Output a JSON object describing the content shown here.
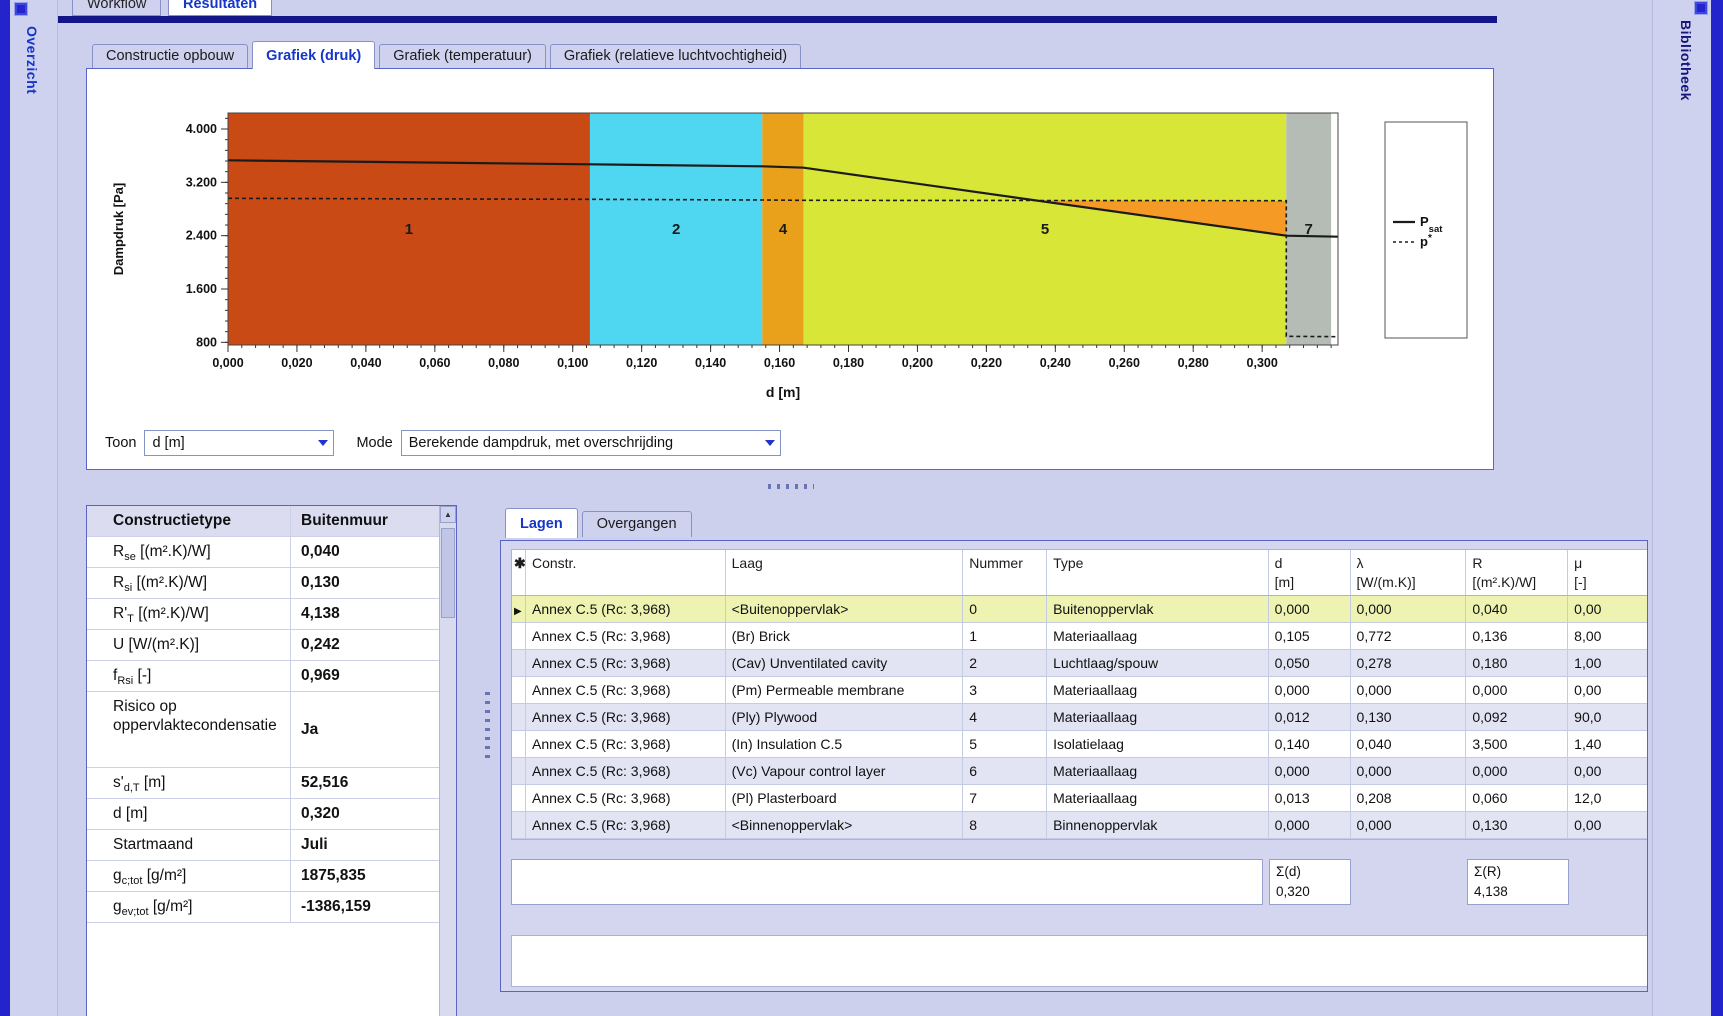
{
  "window": {
    "top_tabs": [
      {
        "label": "Workflow"
      },
      {
        "label": "Resultaten"
      }
    ],
    "left_rail_label": "Overzicht",
    "right_rail_label": "Bibliotheek"
  },
  "icons": {
    "scroll_up": "▲"
  },
  "page_tabs": [
    {
      "label": "Constructie opbouw"
    },
    {
      "label": "Grafiek (druk)"
    },
    {
      "label": "Grafiek (temperatuur)"
    },
    {
      "label": "Grafiek (relatieve luchtvochtigheid)"
    }
  ],
  "chart_data": {
    "type": "area",
    "ylabel": "Dampdruk [Pa]",
    "xlabel": "d [m]",
    "x_domain": [
      0,
      0.322
    ],
    "y_domain": [
      760,
      4240
    ],
    "x_minor_step": 0.004,
    "y_minor_step": 160,
    "yticks": [
      {
        "v": 800,
        "label": "800"
      },
      {
        "v": 1600,
        "label": "1.600"
      },
      {
        "v": 2400,
        "label": "2.400"
      },
      {
        "v": 3200,
        "label": "3.200"
      },
      {
        "v": 4000,
        "label": "4.000"
      }
    ],
    "xticks": [
      {
        "v": 0.0,
        "label": "0,000"
      },
      {
        "v": 0.02,
        "label": "0,020"
      },
      {
        "v": 0.04,
        "label": "0,040"
      },
      {
        "v": 0.06,
        "label": "0,060"
      },
      {
        "v": 0.08,
        "label": "0,080"
      },
      {
        "v": 0.1,
        "label": "0,100"
      },
      {
        "v": 0.12,
        "label": "0,120"
      },
      {
        "v": 0.14,
        "label": "0,140"
      },
      {
        "v": 0.16,
        "label": "0,160"
      },
      {
        "v": 0.18,
        "label": "0,180"
      },
      {
        "v": 0.2,
        "label": "0,200"
      },
      {
        "v": 0.22,
        "label": "0,220"
      },
      {
        "v": 0.24,
        "label": "0,240"
      },
      {
        "v": 0.26,
        "label": "0,260"
      },
      {
        "v": 0.28,
        "label": "0,280"
      },
      {
        "v": 0.3,
        "label": "0,300"
      }
    ],
    "layers": [
      {
        "num": "1",
        "x0": 0.0,
        "x1": 0.105,
        "color": "#c94a15"
      },
      {
        "num": "2",
        "x0": 0.105,
        "x1": 0.155,
        "color": "#4fd6f0"
      },
      {
        "num": "4",
        "x0": 0.155,
        "x1": 0.167,
        "color": "#e9a11b"
      },
      {
        "num": "5",
        "x0": 0.167,
        "x1": 0.307,
        "color": "#d8e637"
      },
      {
        "num": "7",
        "x0": 0.307,
        "x1": 0.32,
        "color": "#b5bcb5"
      }
    ],
    "overshoot": {
      "color": "#f59a25",
      "points": [
        [
          0.2345,
          2928
        ],
        [
          0.307,
          2925
        ],
        [
          0.307,
          2400
        ]
      ]
    },
    "series": [
      {
        "name": "Psat",
        "style": "solid",
        "points": [
          [
            0,
            3530
          ],
          [
            0.105,
            3470
          ],
          [
            0.155,
            3440
          ],
          [
            0.167,
            3420
          ],
          [
            0.307,
            2400
          ],
          [
            0.322,
            2385
          ]
        ]
      },
      {
        "name": "p",
        "style": "dashed",
        "points": [
          [
            0,
            2960
          ],
          [
            0.105,
            2945
          ],
          [
            0.155,
            2935
          ],
          [
            0.167,
            2930
          ],
          [
            0.307,
            2925
          ],
          [
            0.307,
            890
          ],
          [
            0.322,
            885
          ]
        ]
      }
    ],
    "legend": [
      {
        "style": "solid",
        "pre": "P",
        "sub": "sat",
        "sup": ""
      },
      {
        "style": "dashed",
        "pre": "p",
        "sub": "",
        "sup": "*"
      }
    ]
  },
  "controls": {
    "toon_label": "Toon",
    "toon_value": "d [m]",
    "mode_label": "Mode",
    "mode_value": "Berekende dampdruk, met overschrijding"
  },
  "properties": {
    "rows": [
      {
        "pre": "Constructietype",
        "sub": "",
        "post": "",
        "value": "Buitenmuur",
        "header": true
      },
      {
        "pre": "R",
        "sub": "se",
        "post": " [(m².K)/W]",
        "value": "0,040"
      },
      {
        "pre": "R",
        "sub": "si",
        "post": " [(m².K)/W]",
        "value": "0,130"
      },
      {
        "pre": "R'",
        "sub": "T",
        "post": " [(m².K)/W]",
        "value": "4,138"
      },
      {
        "pre": "U",
        "sub": "",
        "post": " [W/(m².K)]",
        "value": "0,242"
      },
      {
        "pre": "f",
        "sub": "Rsi",
        "post": " [-]",
        "value": "0,969"
      },
      {
        "pre": "Risico op oppervlaktecondensatie",
        "sub": "",
        "post": "",
        "value": "Ja",
        "tall": true
      },
      {
        "pre": "s'",
        "sub": "d,T",
        "post": " [m]",
        "value": "52,516"
      },
      {
        "pre": "d",
        "sub": "",
        "post": " [m]",
        "value": "0,320"
      },
      {
        "pre": "Startmaand",
        "sub": "",
        "post": "",
        "value": "Juli"
      },
      {
        "pre": "g",
        "sub": "c;tot",
        "post": " [g/m²]",
        "value": "1875,835"
      },
      {
        "pre": "g",
        "sub": "ev;tot",
        "post": " [g/m²]",
        "value": "-1386,159"
      }
    ]
  },
  "layers_panel": {
    "tabs": [
      {
        "label": "Lagen"
      },
      {
        "label": "Overgangen"
      }
    ],
    "marker_header": "✱",
    "columns": [
      {
        "l1": "Constr.",
        "l2": ""
      },
      {
        "l1": "Laag",
        "l2": ""
      },
      {
        "l1": "Nummer",
        "l2": ""
      },
      {
        "l1": "Type",
        "l2": ""
      },
      {
        "l1": "d",
        "l2": "[m]"
      },
      {
        "l1": "λ",
        "l2": "[W/(m.K)]"
      },
      {
        "l1": "R",
        "l2": "[(m².K)/W]"
      },
      {
        "l1": "μ",
        "l2": "[-]"
      }
    ],
    "rows": [
      {
        "marker": "▶",
        "constr": "Annex C.5 (Rc: 3,968)",
        "laag": "<Buitenoppervlak>",
        "nummer": "0",
        "type": "Buitenoppervlak",
        "d": "0,000",
        "lambda": "0,000",
        "r": "0,040",
        "mu": "0,00",
        "selected": true
      },
      {
        "marker": "",
        "constr": "Annex C.5 (Rc: 3,968)",
        "laag": "(Br) Brick",
        "nummer": "1",
        "type": "Materiaallaag",
        "d": "0,105",
        "lambda": "0,772",
        "r": "0,136",
        "mu": "8,00"
      },
      {
        "marker": "",
        "constr": "Annex C.5 (Rc: 3,968)",
        "laag": "(Cav) Unventilated cavity",
        "nummer": "2",
        "type": "Luchtlaag/spouw",
        "d": "0,050",
        "lambda": "0,278",
        "r": "0,180",
        "mu": "1,00"
      },
      {
        "marker": "",
        "constr": "Annex C.5 (Rc: 3,968)",
        "laag": "(Pm) Permeable membrane",
        "nummer": "3",
        "type": "Materiaallaag",
        "d": "0,000",
        "lambda": "0,000",
        "r": "0,000",
        "mu": "0,00"
      },
      {
        "marker": "",
        "constr": "Annex C.5 (Rc: 3,968)",
        "laag": "(Ply) Plywood",
        "nummer": "4",
        "type": "Materiaallaag",
        "d": "0,012",
        "lambda": "0,130",
        "r": "0,092",
        "mu": "90,0"
      },
      {
        "marker": "",
        "constr": "Annex C.5 (Rc: 3,968)",
        "laag": "(In) Insulation C.5",
        "nummer": "5",
        "type": "Isolatielaag",
        "d": "0,140",
        "lambda": "0,040",
        "r": "3,500",
        "mu": "1,40"
      },
      {
        "marker": "",
        "constr": "Annex C.5 (Rc: 3,968)",
        "laag": "(Vc) Vapour control layer",
        "nummer": "6",
        "type": "Materiaallaag",
        "d": "0,000",
        "lambda": "0,000",
        "r": "0,000",
        "mu": "0,00"
      },
      {
        "marker": "",
        "constr": "Annex C.5 (Rc: 3,968)",
        "laag": "(Pl) Plasterboard",
        "nummer": "7",
        "type": "Materiaallaag",
        "d": "0,013",
        "lambda": "0,208",
        "r": "0,060",
        "mu": "12,0"
      },
      {
        "marker": "",
        "constr": "Annex C.5 (Rc: 3,968)",
        "laag": "<Binnenoppervlak>",
        "nummer": "8",
        "type": "Binnenoppervlak",
        "d": "0,000",
        "lambda": "0,000",
        "r": "0,130",
        "mu": "0,00"
      }
    ],
    "totals": {
      "d_label": "Σ(d)",
      "d_value": "0,320",
      "r_label": "Σ(R)",
      "r_value": "4,138"
    }
  }
}
